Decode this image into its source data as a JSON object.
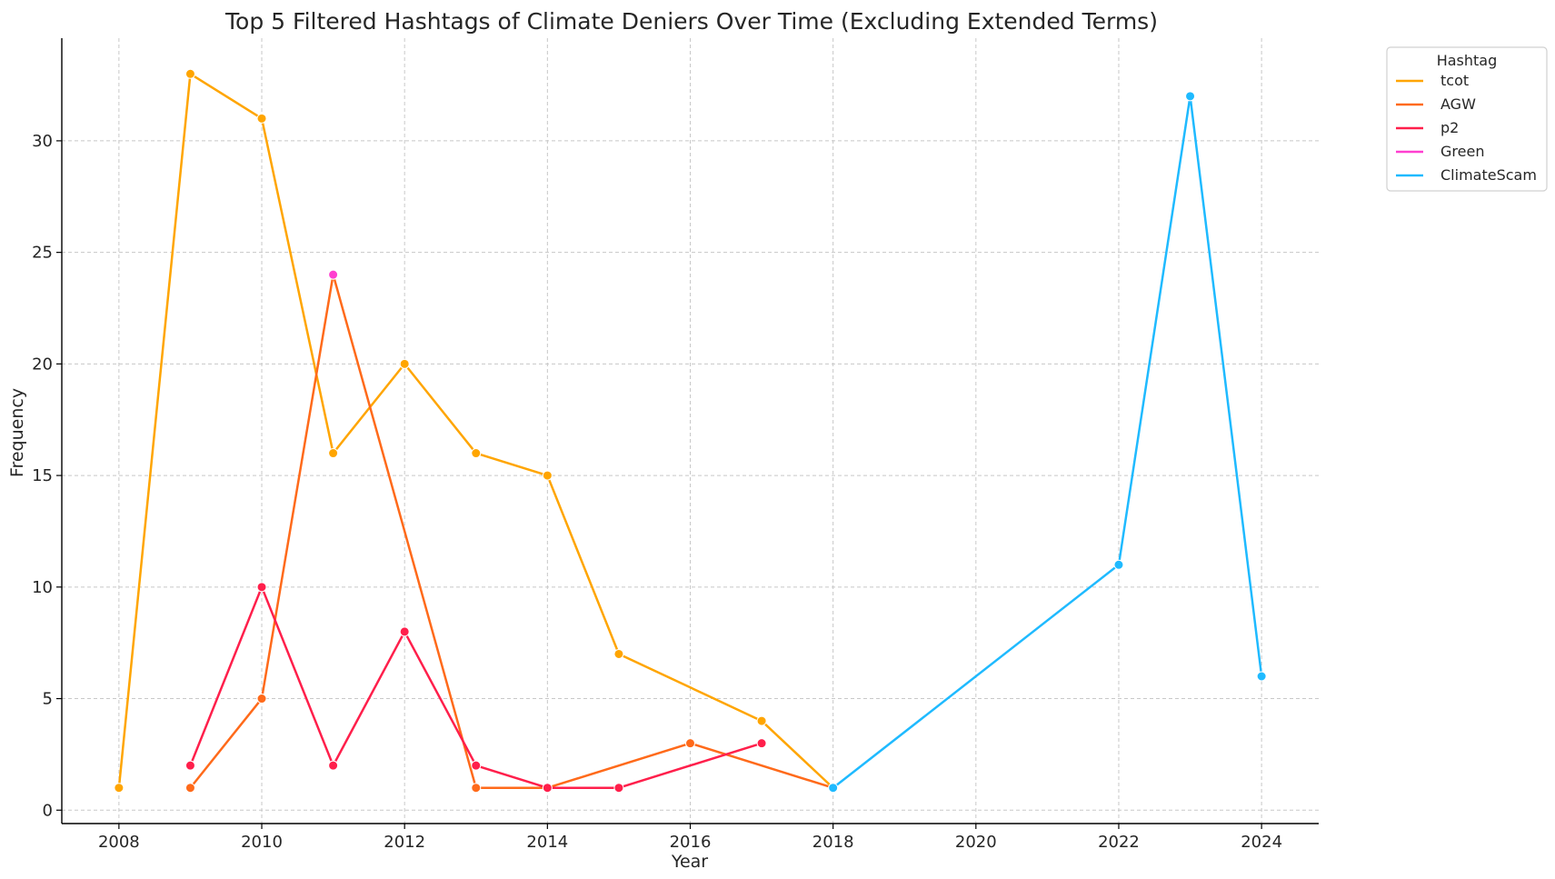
{
  "chart_data": {
    "type": "line",
    "title": "Top 5 Filtered Hashtags of Climate Deniers Over Time (Excluding Extended Terms)",
    "xlabel": "Year",
    "ylabel": "Frequency",
    "xlim": [
      2007.2,
      2024.8
    ],
    "ylim": [
      -0.6,
      34.6
    ],
    "xticks": [
      2008,
      2010,
      2012,
      2014,
      2016,
      2018,
      2020,
      2022,
      2024
    ],
    "yticks": [
      0,
      5,
      10,
      15,
      20,
      25,
      30
    ],
    "grid": true,
    "legend": {
      "title": "Hashtag",
      "placement": "outside-top-right"
    },
    "series": [
      {
        "name": "tcot",
        "color": "#ffa500",
        "x": [
          2008,
          2009,
          2010,
          2011,
          2012,
          2013,
          2014,
          2015,
          2017,
          2018
        ],
        "y": [
          1,
          33,
          31,
          16,
          20,
          16,
          15,
          7,
          4,
          1
        ]
      },
      {
        "name": "AGW",
        "color": "#ff6a1a",
        "x": [
          2009,
          2010,
          2011,
          2013,
          2014,
          2016,
          2018
        ],
        "y": [
          1,
          5,
          24,
          1,
          1,
          3,
          1
        ]
      },
      {
        "name": "p2",
        "color": "#ff1f4b",
        "x": [
          2009,
          2010,
          2011,
          2012,
          2013,
          2014,
          2015,
          2017
        ],
        "y": [
          2,
          10,
          2,
          8,
          2,
          1,
          1,
          3
        ]
      },
      {
        "name": "Green",
        "color": "#ff3fd0",
        "x": [
          2011
        ],
        "y": [
          24
        ]
      },
      {
        "name": "ClimateScam",
        "color": "#1fbaff",
        "x": [
          2018,
          2022,
          2023,
          2024
        ],
        "y": [
          1,
          11,
          32,
          6
        ]
      }
    ]
  }
}
